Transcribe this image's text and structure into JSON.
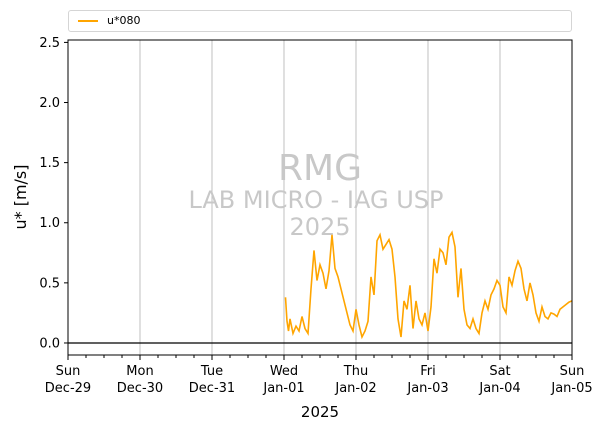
{
  "chart_data": {
    "type": "line",
    "xlabel": "2025",
    "ylabel": "u* [m/s]",
    "ylim": [
      -0.1,
      2.52
    ],
    "yticks": [
      "0.0",
      "0.5",
      "1.0",
      "1.5",
      "2.0",
      "2.5"
    ],
    "x_ticks": [
      {
        "day": "Sun",
        "date": "Dec-29"
      },
      {
        "day": "Mon",
        "date": "Dec-30"
      },
      {
        "day": "Tue",
        "date": "Dec-31"
      },
      {
        "day": "Wed",
        "date": "Jan-01"
      },
      {
        "day": "Thu",
        "date": "Jan-02"
      },
      {
        "day": "Fri",
        "date": "Jan-03"
      },
      {
        "day": "Sat",
        "date": "Jan-04"
      },
      {
        "day": "Sun",
        "date": "Jan-05"
      }
    ],
    "grid": "vertical",
    "legend_position": "top",
    "series": [
      {
        "name": "u*080",
        "color": "#ffa500",
        "x": [
          "2025-01-01T00:30",
          "2025-01-01T01:00",
          "2025-01-01T01:30",
          "2025-01-01T02:00",
          "2025-01-01T03:00",
          "2025-01-01T04:00",
          "2025-01-01T05:00",
          "2025-01-01T06:00",
          "2025-01-01T07:00",
          "2025-01-01T08:00",
          "2025-01-01T09:00",
          "2025-01-01T10:00",
          "2025-01-01T11:00",
          "2025-01-01T12:00",
          "2025-01-01T13:00",
          "2025-01-01T14:00",
          "2025-01-01T15:00",
          "2025-01-01T16:00",
          "2025-01-01T17:00",
          "2025-01-01T18:00",
          "2025-01-01T19:00",
          "2025-01-01T20:00",
          "2025-01-01T21:00",
          "2025-01-01T22:00",
          "2025-01-01T23:00",
          "2025-01-02T00:00",
          "2025-01-02T01:00",
          "2025-01-02T02:00",
          "2025-01-02T03:00",
          "2025-01-02T04:00",
          "2025-01-02T05:00",
          "2025-01-02T06:00",
          "2025-01-02T07:00",
          "2025-01-02T08:00",
          "2025-01-02T09:00",
          "2025-01-02T10:00",
          "2025-01-02T11:00",
          "2025-01-02T12:00",
          "2025-01-02T13:00",
          "2025-01-02T14:00",
          "2025-01-02T15:00",
          "2025-01-02T16:00",
          "2025-01-02T17:00",
          "2025-01-02T18:00",
          "2025-01-02T19:00",
          "2025-01-02T20:00",
          "2025-01-02T21:00",
          "2025-01-02T22:00",
          "2025-01-02T23:00",
          "2025-01-03T00:00",
          "2025-01-03T01:00",
          "2025-01-03T02:00",
          "2025-01-03T03:00",
          "2025-01-03T04:00",
          "2025-01-03T05:00",
          "2025-01-03T06:00",
          "2025-01-03T07:00",
          "2025-01-03T08:00",
          "2025-01-03T09:00",
          "2025-01-03T10:00",
          "2025-01-03T11:00",
          "2025-01-03T12:00",
          "2025-01-03T13:00",
          "2025-01-03T14:00",
          "2025-01-03T15:00",
          "2025-01-03T16:00",
          "2025-01-03T17:00",
          "2025-01-03T18:00",
          "2025-01-03T19:00",
          "2025-01-03T20:00",
          "2025-01-03T21:00",
          "2025-01-03T22:00",
          "2025-01-03T23:00",
          "2025-01-04T00:00",
          "2025-01-04T01:00",
          "2025-01-04T02:00",
          "2025-01-04T03:00",
          "2025-01-04T04:00",
          "2025-01-04T05:00",
          "2025-01-04T06:00",
          "2025-01-04T07:00",
          "2025-01-04T08:00",
          "2025-01-04T09:00",
          "2025-01-04T10:00",
          "2025-01-04T11:00",
          "2025-01-04T12:00",
          "2025-01-04T13:00",
          "2025-01-04T14:00",
          "2025-01-04T15:00",
          "2025-01-04T16:00",
          "2025-01-04T17:00",
          "2025-01-04T18:00",
          "2025-01-04T19:00",
          "2025-01-04T20:00",
          "2025-01-04T21:00",
          "2025-01-04T22:00",
          "2025-01-04T23:00",
          "2025-01-05T00:00"
        ],
        "y": [
          0.38,
          0.18,
          0.1,
          0.2,
          0.08,
          0.14,
          0.1,
          0.22,
          0.12,
          0.08,
          0.45,
          0.77,
          0.52,
          0.65,
          0.58,
          0.45,
          0.6,
          0.9,
          0.62,
          0.55,
          0.45,
          0.35,
          0.25,
          0.15,
          0.1,
          0.28,
          0.15,
          0.05,
          0.1,
          0.18,
          0.55,
          0.4,
          0.85,
          0.9,
          0.78,
          0.82,
          0.86,
          0.78,
          0.55,
          0.2,
          0.05,
          0.35,
          0.28,
          0.48,
          0.12,
          0.35,
          0.2,
          0.15,
          0.25,
          0.1,
          0.3,
          0.7,
          0.58,
          0.78,
          0.75,
          0.65,
          0.88,
          0.92,
          0.8,
          0.38,
          0.62,
          0.28,
          0.15,
          0.12,
          0.2,
          0.12,
          0.08,
          0.25,
          0.35,
          0.28,
          0.4,
          0.45,
          0.52,
          0.48,
          0.3,
          0.25,
          0.55,
          0.48,
          0.6,
          0.68,
          0.62,
          0.45,
          0.35,
          0.5,
          0.4,
          0.25,
          0.18,
          0.3,
          0.22,
          0.2,
          0.25,
          0.24,
          0.22,
          0.28,
          0.3,
          0.32,
          0.34,
          0.35
        ]
      }
    ]
  },
  "watermark": {
    "line1": "RMG",
    "line2": "LAB MICRO - IAG USP",
    "line3": "2025"
  }
}
